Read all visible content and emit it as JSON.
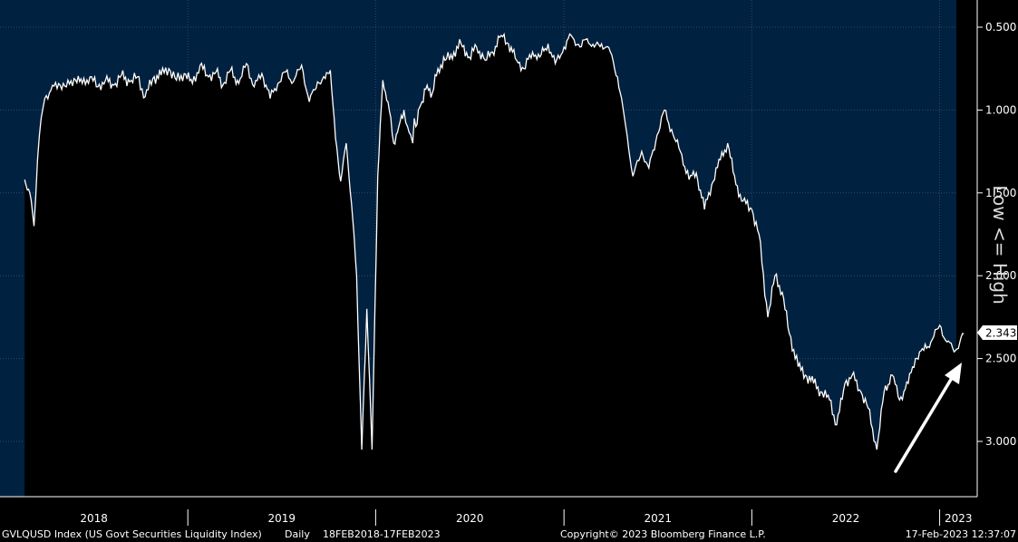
{
  "chart_data": {
    "type": "area",
    "ticker": "GVLQUSD Index (US Govt Securities Liquidity Index)",
    "frequency": "Daily",
    "range": "18FEB2018-17FEB2023",
    "copyright": "Copyright© 2023 Bloomberg Finance L.P.",
    "timestamp": "17-Feb-2023 12:37:07",
    "side_label": "Low <= High",
    "y_inverted": true,
    "ylim": [
      0.5,
      3.0
    ],
    "y_ticks": [
      "0.500",
      "1.000",
      "1.500",
      "2.000",
      "2.500",
      "3.000"
    ],
    "x_ticks": [
      "2018",
      "2019",
      "2020",
      "2021",
      "2022",
      "2023"
    ],
    "last_value": "2.343",
    "colors": {
      "background": "#00213f",
      "area": "#000000",
      "line": "#ffffff",
      "axis": "#ffffff"
    },
    "series": [
      {
        "x": [
          "2018-02-18",
          "2018-02-28",
          "2018-03-08",
          "2018-03-15",
          "2018-03-22",
          "2018-03-29",
          "2018-04-10",
          "2018-04-25",
          "2018-05-10",
          "2018-05-25",
          "2018-06-10",
          "2018-06-25",
          "2018-07-10",
          "2018-07-25",
          "2018-08-10",
          "2018-08-25",
          "2018-09-10",
          "2018-09-25",
          "2018-10-10",
          "2018-10-25",
          "2018-11-10",
          "2018-11-25",
          "2018-12-10",
          "2018-12-25",
          "2019-01-10",
          "2019-01-25",
          "2019-02-10",
          "2019-02-25",
          "2019-03-10",
          "2019-03-25",
          "2019-04-10",
          "2019-04-25",
          "2019-05-10",
          "2019-05-25",
          "2019-06-10",
          "2019-06-25",
          "2019-07-10",
          "2019-07-25",
          "2019-08-10",
          "2019-08-25",
          "2019-09-10",
          "2019-09-25",
          "2019-10-05",
          "2019-10-15",
          "2019-10-25",
          "2019-11-05",
          "2019-11-15",
          "2019-11-25",
          "2019-12-05",
          "2019-12-15",
          "2019-12-25",
          "2020-01-05",
          "2020-01-15",
          "2020-01-25",
          "2020-02-05",
          "2020-02-15",
          "2020-02-25",
          "2020-03-03",
          "2020-03-09",
          "2020-03-13",
          "2020-03-16",
          "2020-03-19",
          "2020-03-24",
          "2020-03-31",
          "2020-04-10",
          "2020-04-20",
          "2020-05-01",
          "2020-05-15",
          "2020-06-01",
          "2020-06-15",
          "2020-07-01",
          "2020-07-15",
          "2020-08-01",
          "2020-08-15",
          "2020-09-01",
          "2020-09-15",
          "2020-10-01",
          "2020-10-15",
          "2020-11-01",
          "2020-11-15",
          "2020-12-01",
          "2020-12-15",
          "2021-01-01",
          "2021-01-15",
          "2021-02-01",
          "2021-02-15",
          "2021-03-01",
          "2021-03-15",
          "2021-04-01",
          "2021-04-15",
          "2021-05-01",
          "2021-05-15",
          "2021-06-01",
          "2021-06-15",
          "2021-07-01",
          "2021-07-15",
          "2021-08-01",
          "2021-08-15",
          "2021-09-01",
          "2021-09-15",
          "2021-10-01",
          "2021-10-15",
          "2021-11-01",
          "2021-11-15",
          "2021-12-01",
          "2021-12-15",
          "2022-01-01",
          "2022-01-15",
          "2022-02-01",
          "2022-02-15",
          "2022-03-01",
          "2022-03-15",
          "2022-04-01",
          "2022-04-15",
          "2022-05-01",
          "2022-05-15",
          "2022-06-01",
          "2022-06-15",
          "2022-07-01",
          "2022-07-15",
          "2022-08-01",
          "2022-08-15",
          "2022-09-01",
          "2022-09-15",
          "2022-10-01",
          "2022-10-15",
          "2022-11-01",
          "2022-11-15",
          "2022-12-01",
          "2022-12-15",
          "2023-01-01",
          "2023-01-15",
          "2023-02-01",
          "2023-02-17"
        ],
        "y": [
          1.42,
          1.5,
          1.7,
          1.3,
          1.05,
          0.93,
          0.88,
          0.84,
          0.86,
          0.81,
          0.84,
          0.8,
          0.86,
          0.82,
          0.85,
          0.79,
          0.83,
          0.8,
          0.92,
          0.81,
          0.79,
          0.75,
          0.82,
          0.78,
          0.84,
          0.73,
          0.8,
          0.77,
          0.85,
          0.76,
          0.84,
          0.72,
          0.86,
          0.78,
          0.93,
          0.84,
          0.77,
          0.83,
          0.73,
          0.95,
          0.83,
          0.81,
          0.76,
          1.17,
          1.43,
          1.2,
          1.56,
          2.0,
          3.05,
          2.2,
          3.05,
          1.4,
          0.82,
          0.95,
          1.2,
          1.1,
          1.0,
          1.1,
          1.15,
          1.2,
          1.05,
          1.1,
          1.0,
          0.95,
          0.85,
          0.9,
          0.75,
          0.7,
          0.65,
          0.6,
          0.68,
          0.62,
          0.7,
          0.65,
          0.55,
          0.6,
          0.7,
          0.75,
          0.65,
          0.68,
          0.6,
          0.72,
          0.62,
          0.55,
          0.62,
          0.57,
          0.62,
          0.6,
          0.65,
          0.8,
          1.1,
          1.4,
          1.25,
          1.35,
          1.15,
          1.0,
          1.15,
          1.25,
          1.42,
          1.38,
          1.6,
          1.45,
          1.3,
          1.2,
          1.45,
          1.55,
          1.6,
          1.75,
          2.25,
          2.0,
          2.1,
          2.35,
          2.55,
          2.6,
          2.65,
          2.7,
          2.75,
          2.9,
          2.65,
          2.6,
          2.7,
          2.8,
          3.05,
          2.7,
          2.6,
          2.75,
          2.65,
          2.5,
          2.45,
          2.4,
          2.3,
          2.4,
          2.45,
          2.35
        ]
      }
    ]
  }
}
